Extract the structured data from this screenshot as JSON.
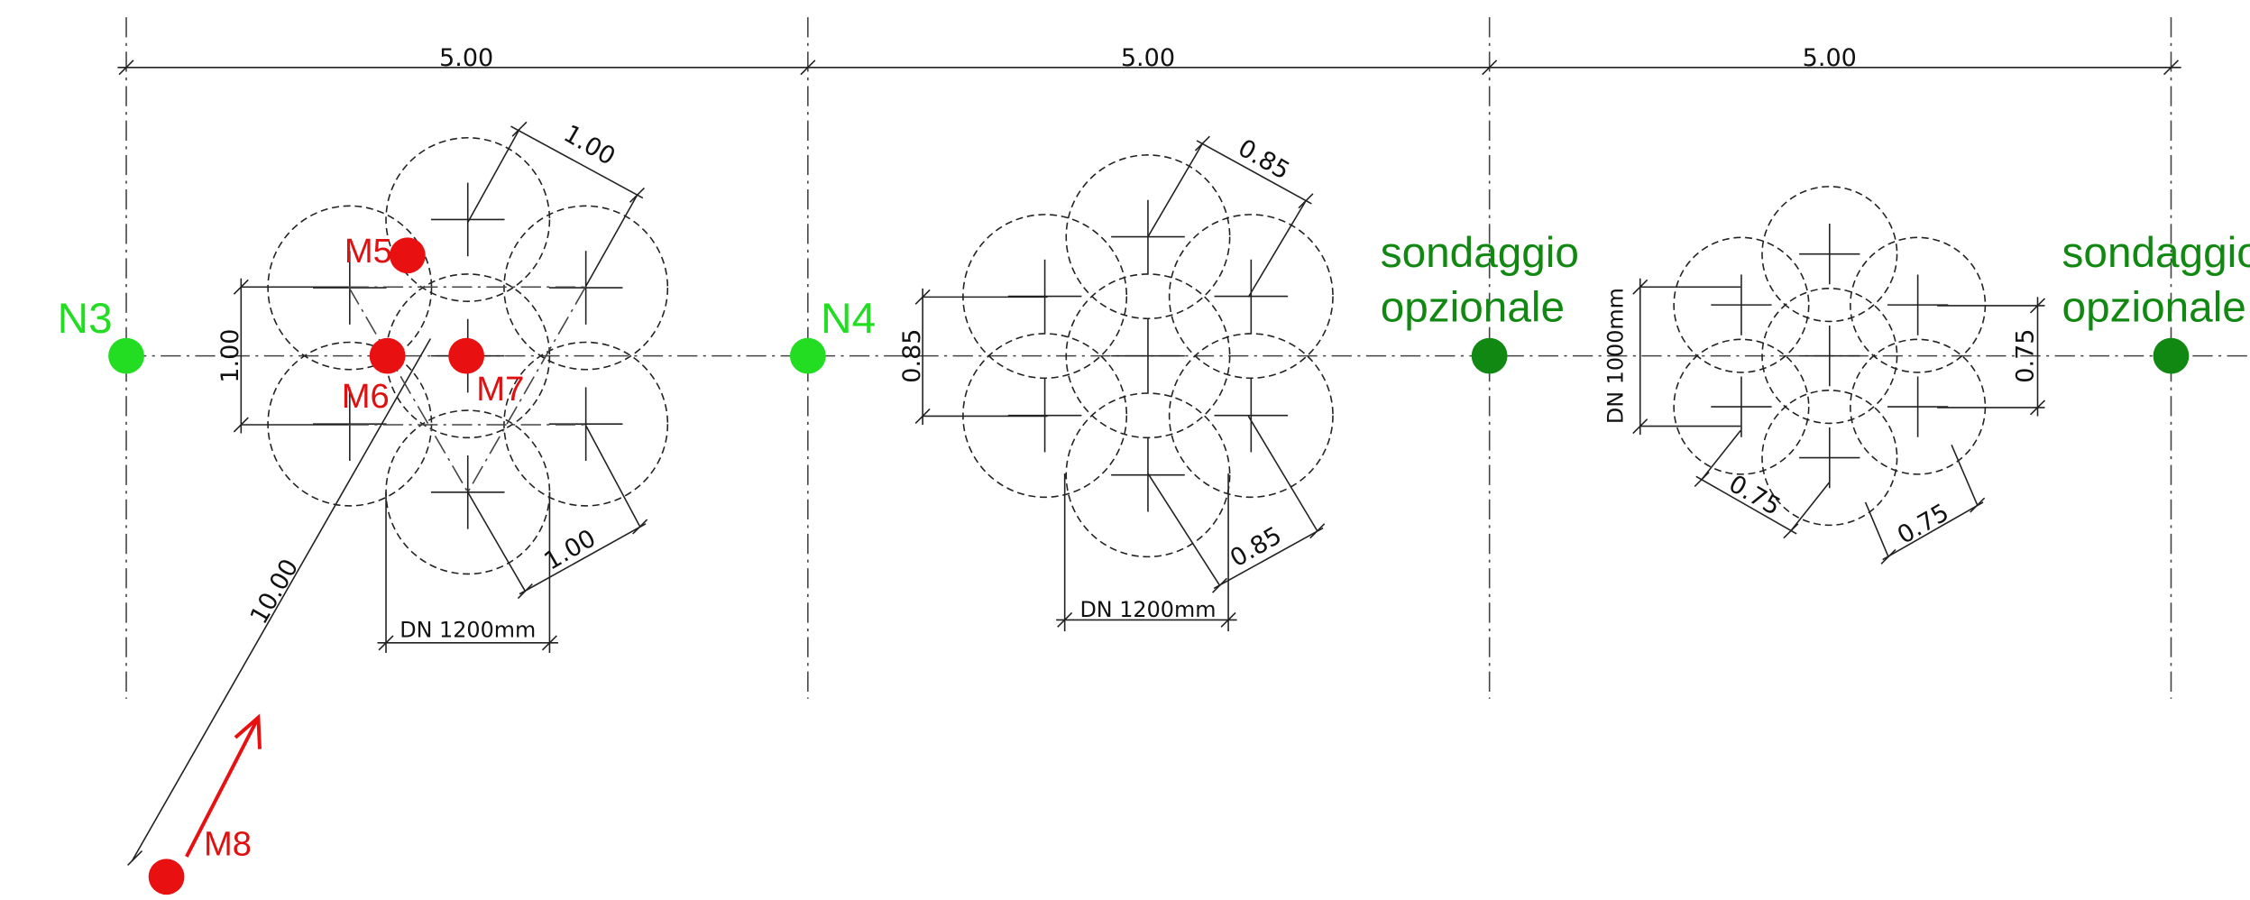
{
  "top_dimensions": [
    "5.00",
    "5.00",
    "5.00"
  ],
  "points": {
    "n3": "N3",
    "n4": "N4",
    "m5": "M5",
    "m6": "M6",
    "m7": "M7",
    "m8": "M8"
  },
  "probes": [
    {
      "line1": "sondaggio",
      "line2": "opzionale"
    },
    {
      "line1": "sondaggio",
      "line2": "opzionale"
    }
  ],
  "group1": {
    "top": "1.00",
    "left": "1.00",
    "bottom_right": "1.00",
    "diameter": "DN  1200mm",
    "distance": "10.00"
  },
  "group2": {
    "top": "0.85",
    "left": "0.85",
    "bottom_right": "0.85",
    "diameter": "DN  1200mm"
  },
  "group3": {
    "diameter": "DN  1000mm",
    "right": "0.75",
    "bottom_left": "0.75",
    "bottom_right": "0.75"
  }
}
